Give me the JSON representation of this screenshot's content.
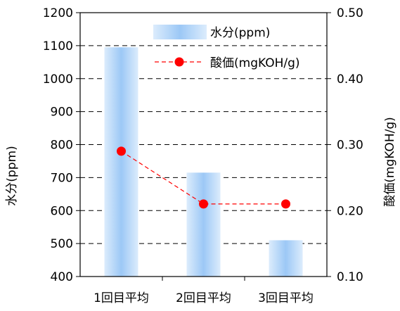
{
  "chart_data": {
    "type": "bar",
    "categories": [
      "1回目平均",
      "2回目平均",
      "3回目平均"
    ],
    "series": [
      {
        "name": "水分(ppm)",
        "type": "bar",
        "axis": "left",
        "values": [
          1095,
          715,
          510
        ]
      },
      {
        "name": "酸価(mgKOH/g)",
        "type": "line",
        "axis": "right",
        "values": [
          0.29,
          0.21,
          0.21
        ]
      }
    ],
    "ylabel": "水分(ppm)",
    "y2label": "酸価(mgKOH/g)",
    "ylim": [
      400,
      1200
    ],
    "y2lim": [
      0.1,
      0.5
    ],
    "yticks": [
      "400",
      "500",
      "600",
      "700",
      "800",
      "900",
      "1000",
      "1100",
      "1200"
    ],
    "y2ticks": [
      "0.10",
      "0.20",
      "0.30",
      "0.40",
      "0.50"
    ],
    "grid": true,
    "legend": "top-right",
    "colors": {
      "bar_light": "#dcecfc",
      "bar_dark": "#9cc8f6",
      "line": "#ff0000",
      "marker": "#ff0000"
    }
  }
}
